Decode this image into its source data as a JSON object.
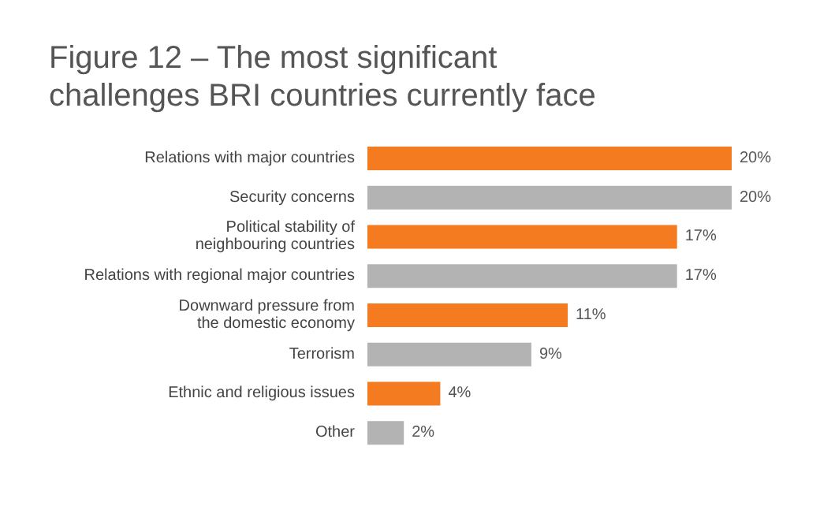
{
  "chart_data": {
    "type": "bar",
    "orientation": "horizontal",
    "title": "Figure 12 – The most significant challenges BRI countries currently face",
    "categories": [
      "Relations with major countries",
      "Security concerns",
      "Political stability of\nneighbouring countries",
      "Relations with regional major countries",
      "Downward pressure from\nthe domestic economy",
      "Terrorism",
      "Ethnic and religious issues",
      "Other"
    ],
    "values": [
      20,
      20,
      17,
      17,
      11,
      9,
      4,
      2
    ],
    "value_labels": [
      "20%",
      "20%",
      "17%",
      "17%",
      "11%",
      "9%",
      "4%",
      "2%"
    ],
    "colors": [
      "#f47b20",
      "#b3b3b3",
      "#f47b20",
      "#b3b3b3",
      "#f47b20",
      "#b3b3b3",
      "#f47b20",
      "#b3b3b3"
    ]
  }
}
